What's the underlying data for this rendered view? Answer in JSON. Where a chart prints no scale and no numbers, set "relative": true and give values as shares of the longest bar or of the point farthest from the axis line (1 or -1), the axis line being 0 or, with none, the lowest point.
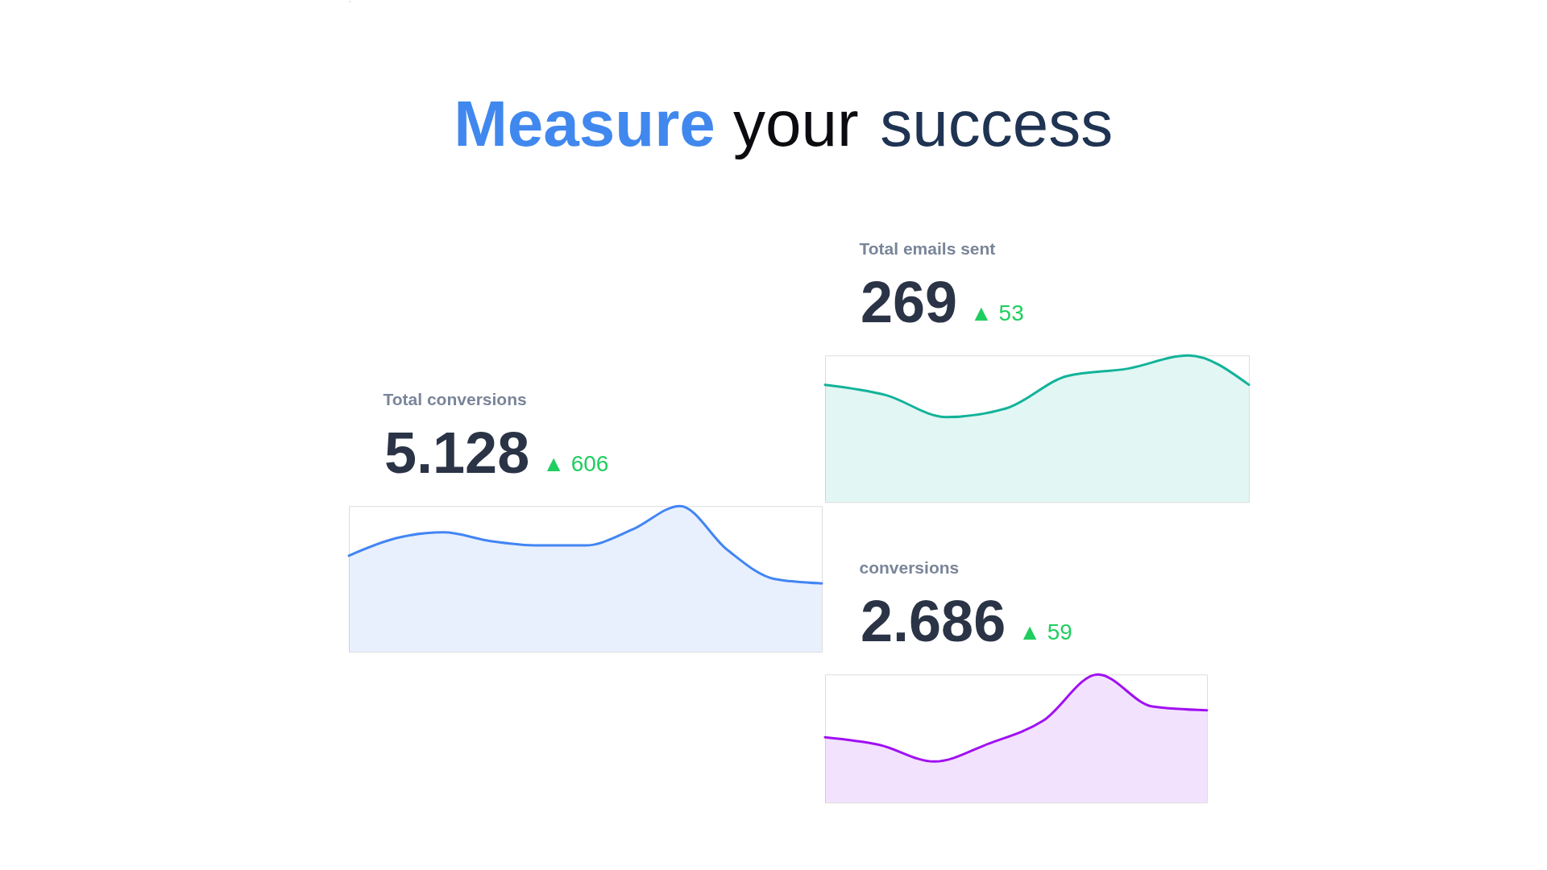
{
  "chart_data": [
    {
      "type": "other",
      "title": "Measure your success"
    },
    {
      "type": "area",
      "title": "Total emails sent",
      "annotations": [
        "269",
        "▲ 53"
      ],
      "relative": true,
      "categories": [
        null,
        null,
        null,
        null,
        null,
        null,
        null,
        null
      ],
      "values": [
        0.8,
        0.73,
        0.58,
        0.64,
        0.86,
        0.91,
        1,
        0.8
      ],
      "color": "#12b39a"
    },
    {
      "type": "area",
      "title": "Total conversions",
      "annotations": [
        "5.128",
        "▲ 606"
      ],
      "relative": true,
      "categories": [
        null,
        null,
        null,
        null,
        null,
        null,
        null,
        null,
        null,
        null,
        null
      ],
      "values": [
        0.66,
        0.78,
        0.82,
        0.76,
        0.73,
        0.73,
        0.84,
        1,
        0.7,
        0.5,
        0.47
      ],
      "color": "#4285f4"
    },
    {
      "type": "area",
      "title": "conversions",
      "annotations": [
        "2.686",
        "▲ 59"
      ],
      "relative": true,
      "categories": [
        null,
        null,
        null,
        null,
        null,
        null,
        null,
        null
      ],
      "values": [
        0.51,
        0.45,
        0.32,
        0.46,
        0.64,
        1,
        0.75,
        0.72
      ],
      "color": "#a010f2"
    }
  ]
}
